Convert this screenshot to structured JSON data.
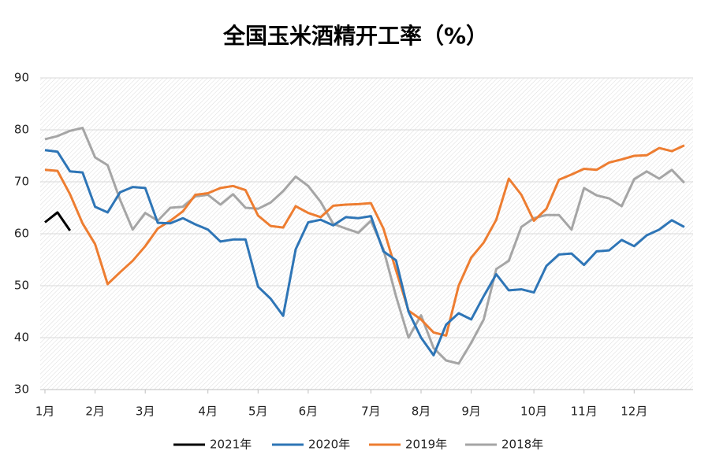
{
  "chart_data": {
    "type": "line",
    "title": "全国玉米酒精开工率（%）",
    "categories": [
      "1月",
      null,
      null,
      null,
      "2月",
      null,
      null,
      null,
      "3月",
      null,
      null,
      null,
      null,
      "4月",
      null,
      null,
      null,
      "5月",
      null,
      null,
      null,
      "6月",
      null,
      null,
      null,
      null,
      "7月",
      null,
      null,
      null,
      "8月",
      null,
      null,
      null,
      "9月",
      null,
      null,
      null,
      null,
      "10月",
      null,
      null,
      null,
      "11月",
      null,
      null,
      null,
      "12月",
      null,
      null,
      null,
      null
    ],
    "series": [
      {
        "name": "2021年",
        "color": "#000000",
        "values": [
          62.2,
          64.1,
          60.6,
          null,
          null,
          null,
          null,
          null,
          null,
          null,
          null,
          null,
          null,
          null,
          null,
          null,
          null,
          null,
          null,
          null,
          null,
          null,
          null,
          null,
          null,
          null,
          null,
          null,
          null,
          null,
          null,
          null,
          null,
          null,
          null,
          null,
          null,
          null,
          null,
          null,
          null,
          null,
          null,
          null,
          null,
          null,
          null,
          null,
          null,
          null,
          null,
          null
        ]
      },
      {
        "name": "2020年",
        "color": "#2e75b6",
        "values": [
          76.1,
          75.8,
          72.0,
          71.8,
          65.2,
          64.1,
          68.0,
          69.0,
          68.8,
          62.1,
          62.0,
          63.0,
          61.8,
          60.8,
          58.5,
          58.9,
          58.9,
          49.8,
          47.5,
          44.2,
          57.0,
          62.2,
          62.7,
          61.6,
          63.2,
          63.0,
          63.4,
          56.6,
          54.9,
          45.0,
          40.0,
          36.6,
          42.5,
          44.7,
          43.5,
          48.0,
          52.2,
          49.1,
          49.3,
          48.7,
          53.8,
          56.0,
          56.2,
          54.0,
          56.6,
          56.8,
          58.8,
          57.6,
          59.7,
          60.8,
          62.6,
          61.3
        ]
      },
      {
        "name": "2019年",
        "color": "#ed7d31",
        "values": [
          72.3,
          72.1,
          67.6,
          62.0,
          58.0,
          50.3,
          52.6,
          54.8,
          57.6,
          61.0,
          62.5,
          64.3,
          67.5,
          67.8,
          68.8,
          69.2,
          68.4,
          63.5,
          61.5,
          61.2,
          65.3,
          64.0,
          63.2,
          65.4,
          65.6,
          65.7,
          65.9,
          61.0,
          53.0,
          45.2,
          43.5,
          41.0,
          40.4,
          50.0,
          55.4,
          58.3,
          62.7,
          70.6,
          67.5,
          62.5,
          64.8,
          70.4,
          71.4,
          72.5,
          72.3,
          73.7,
          74.3,
          75.0,
          75.1,
          76.5,
          75.9,
          77.0
        ]
      },
      {
        "name": "2018年",
        "color": "#a5a5a5",
        "values": [
          78.2,
          78.8,
          79.8,
          80.4,
          74.7,
          73.2,
          66.5,
          60.8,
          64.0,
          62.5,
          65.0,
          65.2,
          67.2,
          67.5,
          65.6,
          67.6,
          65.0,
          64.8,
          66.0,
          68.2,
          71.0,
          69.2,
          66.1,
          61.9,
          61.0,
          60.2,
          62.5,
          57.0,
          48.0,
          40.0,
          44.3,
          38.0,
          35.6,
          35.0,
          39.0,
          43.5,
          53.2,
          54.8,
          61.3,
          63.0,
          63.6,
          63.6,
          60.8,
          68.8,
          67.4,
          66.8,
          65.3,
          70.5,
          72.0,
          70.6,
          72.3,
          69.8
        ]
      }
    ],
    "ylim": [
      30,
      90
    ],
    "yticks": [
      30,
      40,
      50,
      60,
      70,
      80,
      90
    ],
    "grid": true,
    "legend": "bottom"
  }
}
